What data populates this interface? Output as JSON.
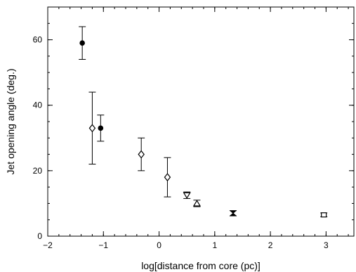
{
  "chart_data": {
    "type": "scatter",
    "xlabel": "log[distance from core (pc)]",
    "ylabel": "Jet opening angle (deg.)",
    "xlim": [
      -2,
      3.5
    ],
    "ylim": [
      0,
      70
    ],
    "x_ticks": [
      -2,
      -1,
      0,
      1,
      2,
      3
    ],
    "y_ticks": [
      0,
      20,
      40,
      60
    ],
    "x_tick_labels": [
      "−2",
      "−1",
      "0",
      "1",
      "2",
      "3"
    ],
    "y_tick_labels": [
      "0",
      "20",
      "40",
      "60"
    ],
    "grid": false,
    "series": [
      {
        "marker": "filled-circle",
        "points": [
          {
            "x": -1.38,
            "y": 59,
            "lo": 54,
            "hi": 64
          },
          {
            "x": -1.05,
            "y": 33,
            "lo": 29,
            "hi": 37
          }
        ]
      },
      {
        "marker": "open-diamond",
        "points": [
          {
            "x": -1.2,
            "y": 33,
            "lo": 22,
            "hi": 44
          },
          {
            "x": -0.32,
            "y": 25,
            "lo": 20,
            "hi": 30
          },
          {
            "x": 0.15,
            "y": 18,
            "lo": 12,
            "hi": 24
          }
        ]
      },
      {
        "marker": "open-triangle-down",
        "points": [
          {
            "x": 0.5,
            "y": 12.5,
            "lo": 11.5,
            "hi": 13.5
          }
        ]
      },
      {
        "marker": "open-triangle-up",
        "points": [
          {
            "x": 0.68,
            "y": 10,
            "lo": 9,
            "hi": 11
          }
        ]
      },
      {
        "marker": "bowtie",
        "points": [
          {
            "x": 1.33,
            "y": 7,
            "lo": 6.2,
            "hi": 7.8
          }
        ]
      },
      {
        "marker": "open-square",
        "points": [
          {
            "x": 2.96,
            "y": 6.5,
            "lo": 5.9,
            "hi": 7.1
          }
        ]
      }
    ]
  }
}
